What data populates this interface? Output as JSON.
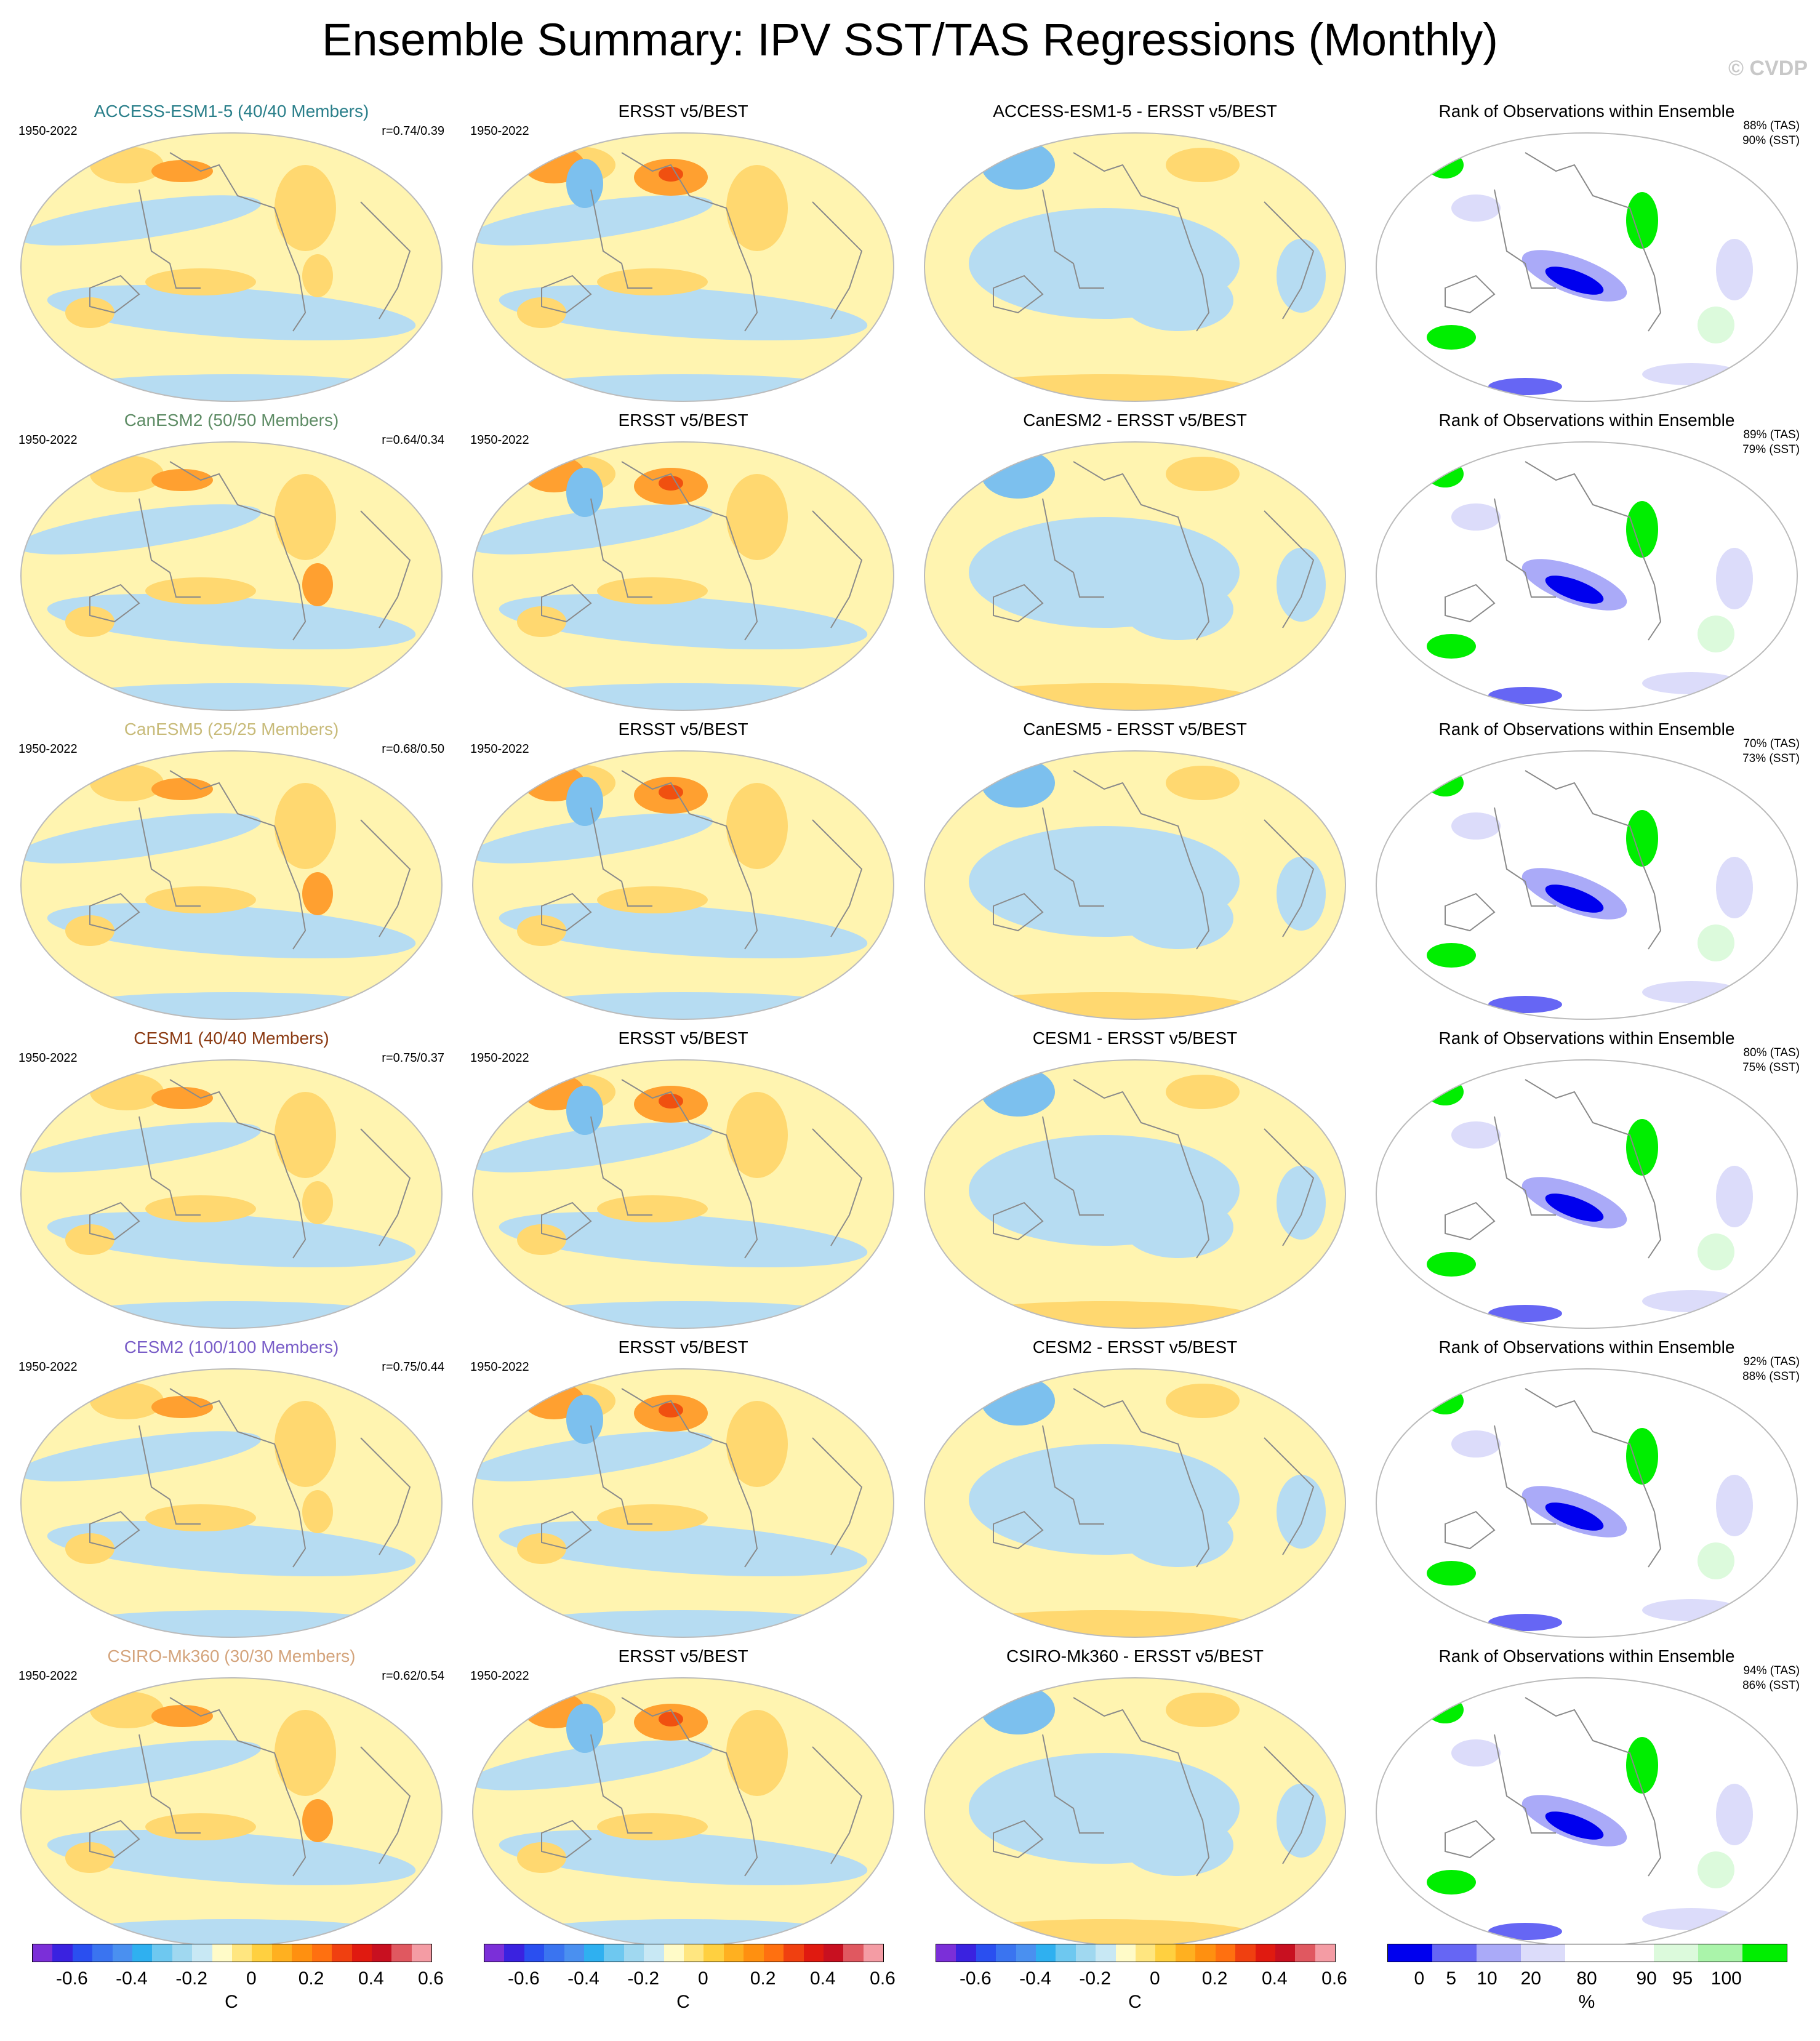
{
  "title": "Ensemble Summary: IPV SST/TAS Regressions (Monthly)",
  "copyright": "© CVDP",
  "rows": [
    {
      "model": "ACCESS-ESM1-5 (40/40 Members)",
      "model_color": "#2a7f8a",
      "period": "1950-2022",
      "corr": "r=0.74/0.39",
      "obs_title": "ERSST v5/BEST",
      "diff_title": "ACCESS-ESM1-5 - ERSST v5/BEST",
      "rank_title": "Rank of Observations within Ensemble",
      "rank_tas": "88% (TAS)",
      "rank_sst": "90% (SST)"
    },
    {
      "model": "CanESM2 (50/50 Members)",
      "model_color": "#5e8c65",
      "period": "1950-2022",
      "corr": "r=0.64/0.34",
      "obs_title": "ERSST v5/BEST",
      "diff_title": "CanESM2 - ERSST v5/BEST",
      "rank_title": "Rank of Observations within Ensemble",
      "rank_tas": "89% (TAS)",
      "rank_sst": "79% (SST)"
    },
    {
      "model": "CanESM5 (25/25 Members)",
      "model_color": "#c8bb7a",
      "period": "1950-2022",
      "corr": "r=0.68/0.50",
      "obs_title": "ERSST v5/BEST",
      "diff_title": "CanESM5 - ERSST v5/BEST",
      "rank_title": "Rank of Observations within Ensemble",
      "rank_tas": "70% (TAS)",
      "rank_sst": "73% (SST)"
    },
    {
      "model": "CESM1 (40/40 Members)",
      "model_color": "#8b3a12",
      "period": "1950-2022",
      "corr": "r=0.75/0.37",
      "obs_title": "ERSST v5/BEST",
      "diff_title": "CESM1 - ERSST v5/BEST",
      "rank_title": "Rank of Observations within Ensemble",
      "rank_tas": "80% (TAS)",
      "rank_sst": "75% (SST)"
    },
    {
      "model": "CESM2 (100/100 Members)",
      "model_color": "#7a5ec8",
      "period": "1950-2022",
      "corr": "r=0.75/0.44",
      "obs_title": "ERSST v5/BEST",
      "diff_title": "CESM2 - ERSST v5/BEST",
      "rank_title": "Rank of Observations within Ensemble",
      "rank_tas": "92% (TAS)",
      "rank_sst": "88% (SST)"
    },
    {
      "model": "CSIRO-Mk360 (30/30 Members)",
      "model_color": "#d4a47c",
      "period": "1950-2022",
      "corr": "r=0.62/0.54",
      "obs_title": "ERSST v5/BEST",
      "diff_title": "CSIRO-Mk360 - ERSST v5/BEST",
      "rank_title": "Rank of Observations within Ensemble",
      "rank_tas": "94% (TAS)",
      "rank_sst": "86% (SST)"
    }
  ],
  "colorbars": {
    "regression": {
      "colors": [
        "#7b2fd8",
        "#3a22e0",
        "#2a4ff0",
        "#3a74f0",
        "#4a90f0",
        "#2fb0f0",
        "#6ec8f0",
        "#a0d8f0",
        "#c8e8f4",
        "#fffbc8",
        "#ffe680",
        "#ffd040",
        "#ffb020",
        "#ff9010",
        "#ff7010",
        "#f04010",
        "#e01a10",
        "#c81020",
        "#e05860",
        "#f49ca4"
      ],
      "labels": [
        "-0.6",
        "-0.4",
        "-0.2",
        "0",
        "0.2",
        "0.4",
        "0.6"
      ],
      "unit": "C"
    },
    "rank": {
      "colors": [
        "#0000ee",
        "#6666f4",
        "#aaaaf8",
        "#dcdcfa",
        "#ffffff",
        "#ffffff",
        "#dcfadc",
        "#aaf4aa",
        "#00ee00"
      ],
      "labels": [
        "0",
        "5",
        "10",
        "20",
        "80",
        "90",
        "95",
        "100"
      ],
      "unit": "%"
    }
  }
}
